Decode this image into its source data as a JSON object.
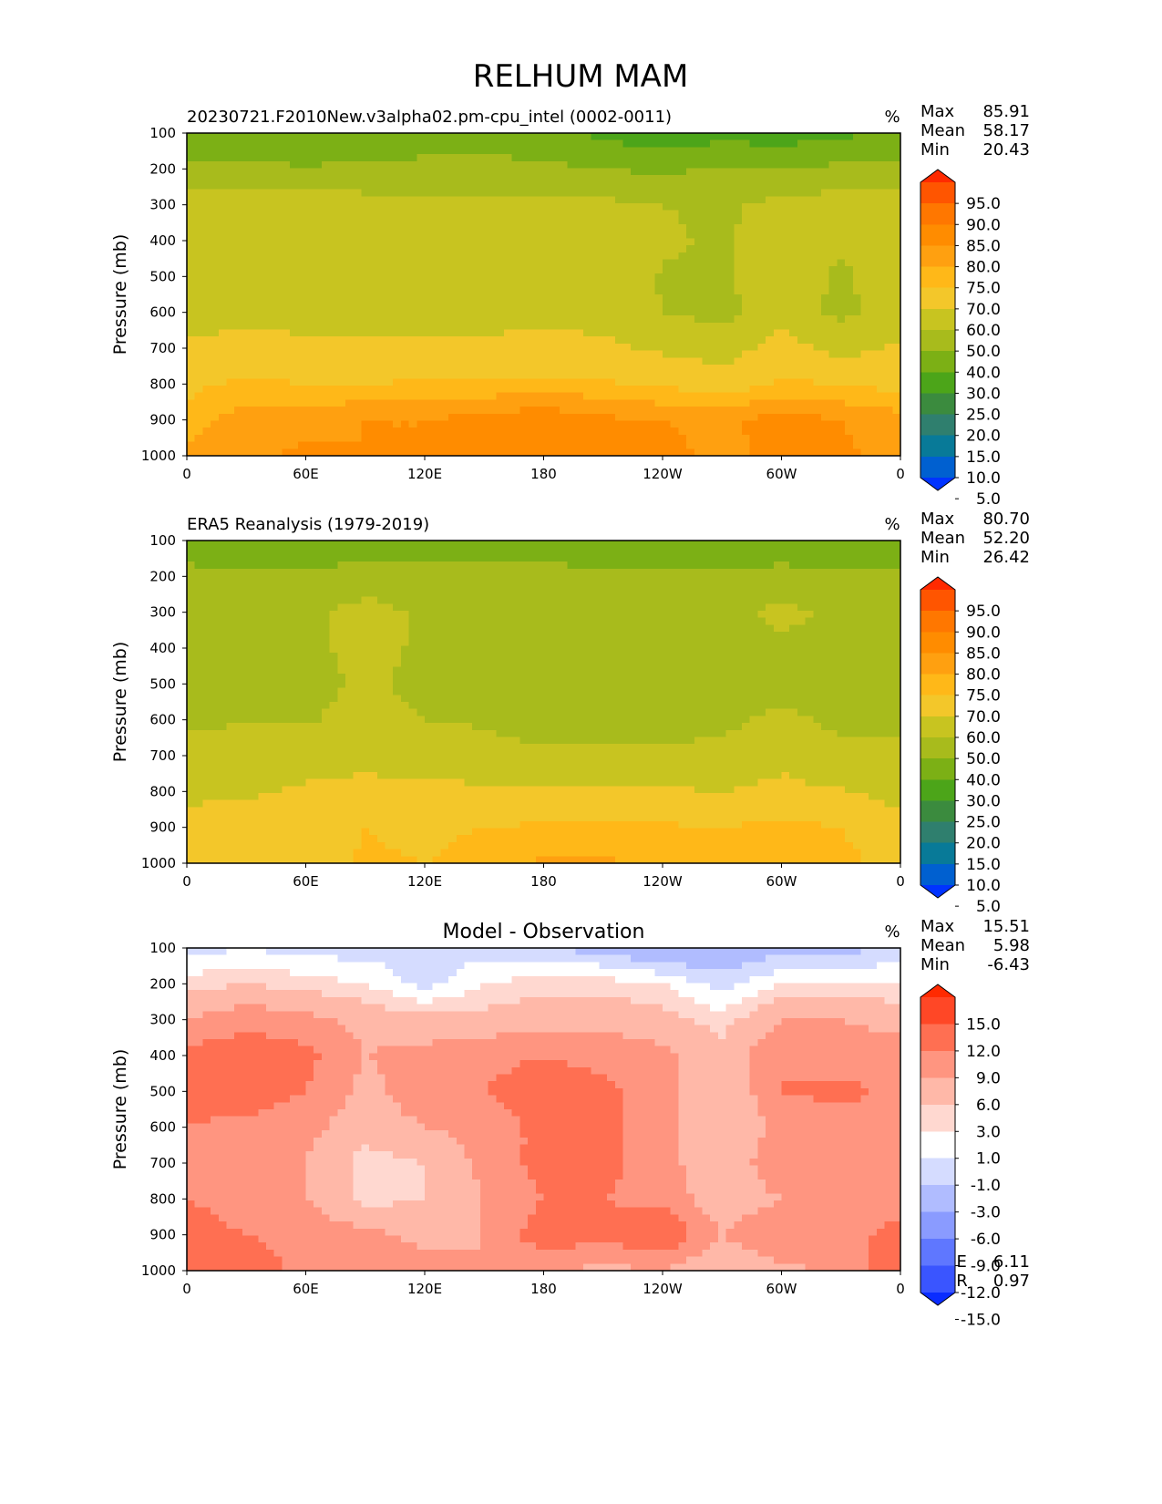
{
  "title": "RELHUM MAM",
  "chart_data": [
    {
      "type": "heatmap",
      "panel": "model",
      "subtitle": "20230721.F2010New.v3alpha02.pm-cpu_intel (0002-0011)",
      "units": "%",
      "ylabel": "Pressure (mb)",
      "yticks": [
        "100",
        "200",
        "300",
        "400",
        "500",
        "600",
        "700",
        "800",
        "900",
        "1000"
      ],
      "xticks": [
        "0",
        "60E",
        "120E",
        "180",
        "120W",
        "60W",
        "0"
      ],
      "ylim": [
        1000,
        100
      ],
      "xlim": [
        0,
        360
      ],
      "stats": [
        {
          "label": "Max",
          "value": "85.91"
        },
        {
          "label": "Mean",
          "value": "58.17"
        },
        {
          "label": "Min",
          "value": "20.43"
        }
      ],
      "colorbar": {
        "labels": [
          "95.0",
          "90.0",
          "85.0",
          "80.0",
          "75.0",
          "70.0",
          "60.0",
          "50.0",
          "40.0",
          "30.0",
          "25.0",
          "20.0",
          "15.0",
          "10.0",
          "5.0"
        ],
        "colors": [
          "#ff2a00",
          "#ff5500",
          "#ff7700",
          "#ff8c00",
          "#ffa010",
          "#ffb818",
          "#f3c72a",
          "#c8c420",
          "#a8bb1c",
          "#7cb015",
          "#4ca519",
          "#3b8b3e",
          "#2f7f6e",
          "#087a98",
          "#0060d0",
          "#0033ff"
        ]
      },
      "field": {
        "x": [
          0,
          30,
          60,
          90,
          120,
          150,
          180,
          210,
          240,
          270,
          300,
          330,
          360
        ],
        "y": [
          100,
          200,
          300,
          400,
          500,
          600,
          700,
          800,
          900,
          1000
        ],
        "z": [
          [
            33,
            32,
            30,
            34,
            36,
            35,
            34,
            27,
            24,
            26,
            25,
            28,
            33
          ],
          [
            43,
            42,
            41,
            42,
            42,
            43,
            42,
            40,
            38,
            41,
            40,
            42,
            43
          ],
          [
            57,
            56,
            55,
            54,
            53,
            53,
            53,
            52,
            50,
            48,
            53,
            55,
            57
          ],
          [
            59,
            60,
            58,
            57,
            57,
            57,
            57,
            56,
            52,
            48,
            57,
            52,
            59
          ],
          [
            58,
            59,
            56,
            57,
            57,
            57,
            57,
            57,
            49,
            48,
            57,
            48,
            57
          ],
          [
            58,
            58,
            57,
            57,
            57,
            57,
            58,
            57,
            50,
            47,
            57,
            47,
            57
          ],
          [
            61,
            62,
            62,
            62,
            62,
            62,
            62,
            62,
            58,
            55,
            64,
            57,
            61
          ],
          [
            68,
            72,
            70,
            70,
            71,
            71,
            72,
            71,
            69,
            66,
            71,
            70,
            68
          ],
          [
            73,
            77,
            78,
            80,
            80,
            82,
            84,
            81,
            80,
            79,
            82,
            80,
            77
          ],
          [
            76,
            79,
            81,
            80,
            80,
            82,
            83,
            81,
            81,
            79,
            81,
            81,
            78
          ]
        ]
      }
    },
    {
      "type": "heatmap",
      "panel": "observation",
      "subtitle": "ERA5 Reanalysis (1979-2019)",
      "units": "%",
      "ylabel": "Pressure (mb)",
      "yticks": [
        "100",
        "200",
        "300",
        "400",
        "500",
        "600",
        "700",
        "800",
        "900",
        "1000"
      ],
      "xticks": [
        "0",
        "60E",
        "120E",
        "180",
        "120W",
        "60W",
        "0"
      ],
      "ylim": [
        1000,
        100
      ],
      "xlim": [
        0,
        360
      ],
      "stats": [
        {
          "label": "Max",
          "value": "80.70"
        },
        {
          "label": "Mean",
          "value": "52.20"
        },
        {
          "label": "Min",
          "value": "26.42"
        }
      ],
      "colorbar": {
        "labels": [
          "95.0",
          "90.0",
          "85.0",
          "80.0",
          "75.0",
          "70.0",
          "60.0",
          "50.0",
          "40.0",
          "30.0",
          "25.0",
          "20.0",
          "15.0",
          "10.0",
          "5.0"
        ],
        "colors": [
          "#ff2a00",
          "#ff5500",
          "#ff7700",
          "#ff8c00",
          "#ffa010",
          "#ffb818",
          "#f3c72a",
          "#c8c420",
          "#a8bb1c",
          "#7cb015",
          "#4ca519",
          "#3b8b3e",
          "#2f7f6e",
          "#087a98",
          "#0060d0",
          "#0033ff"
        ]
      },
      "field": {
        "x": [
          0,
          30,
          60,
          90,
          120,
          150,
          180,
          210,
          240,
          270,
          300,
          330,
          360
        ],
        "y": [
          100,
          200,
          300,
          400,
          500,
          600,
          700,
          800,
          900,
          1000
        ],
        "z": [
          [
            36,
            32,
            34,
            37,
            38,
            37,
            37,
            33,
            31,
            33,
            36,
            34,
            35
          ],
          [
            42,
            42,
            42,
            42,
            42,
            42,
            42,
            42,
            42,
            41,
            42,
            42,
            42
          ],
          [
            47,
            47,
            47,
            55,
            48,
            47,
            47,
            47,
            47,
            46,
            53,
            47,
            47
          ],
          [
            47,
            47,
            47,
            54,
            48,
            47,
            47,
            47,
            47,
            46,
            47,
            47,
            47
          ],
          [
            47,
            47,
            46,
            52,
            47,
            47,
            47,
            47,
            45,
            47,
            47,
            44,
            47
          ],
          [
            48,
            49,
            49,
            54,
            50,
            49,
            47,
            47,
            48,
            48,
            52,
            48,
            48
          ],
          [
            55,
            56,
            57,
            58,
            56,
            53,
            51,
            51,
            51,
            52,
            58,
            52,
            52
          ],
          [
            58,
            59,
            61,
            62,
            62,
            62,
            62,
            62,
            61,
            60,
            62,
            61,
            56
          ],
          [
            63,
            64,
            64,
            70,
            68,
            70,
            71,
            72,
            71,
            70,
            72,
            70,
            64
          ],
          [
            65,
            67,
            67,
            71,
            70,
            73,
            76,
            76,
            73,
            72,
            73,
            72,
            67
          ]
        ]
      }
    },
    {
      "type": "heatmap",
      "panel": "difference",
      "subtitle": "Model - Observation",
      "units": "%",
      "ylabel": "Pressure (mb)",
      "yticks": [
        "100",
        "200",
        "300",
        "400",
        "500",
        "600",
        "700",
        "800",
        "900",
        "1000"
      ],
      "xticks": [
        "0",
        "60E",
        "120E",
        "180",
        "120W",
        "60W",
        "0"
      ],
      "ylim": [
        1000,
        100
      ],
      "xlim": [
        0,
        360
      ],
      "stats": [
        {
          "label": "Max",
          "value": "15.51"
        },
        {
          "label": "Mean",
          "value": "5.98"
        },
        {
          "label": "Min",
          "value": "-6.43"
        }
      ],
      "footer_stats": [
        {
          "label": "RMSE",
          "value": "6.11"
        },
        {
          "label": "CORR",
          "value": "0.97"
        }
      ],
      "colorbar": {
        "labels": [
          "15.0",
          "12.0",
          "9.0",
          "6.0",
          "3.0",
          "1.0",
          "-1.0",
          "-3.0",
          "-6.0",
          "-9.0",
          "-12.0",
          "-15.0"
        ],
        "colors": [
          "#ff2a00",
          "#ff4726",
          "#ff6f52",
          "#ff9580",
          "#ffb8a8",
          "#ffd8d0",
          "#ffffff",
          "#d5dcff",
          "#b0bcff",
          "#8a9bff",
          "#5f77ff",
          "#3a55ff",
          "#0a2cff"
        ]
      },
      "field": {
        "x": [
          0,
          30,
          60,
          90,
          120,
          150,
          180,
          210,
          240,
          270,
          300,
          330,
          360
        ],
        "y": [
          100,
          200,
          300,
          400,
          500,
          600,
          700,
          800,
          900,
          1000
        ],
        "z": [
          [
            -2,
            -1,
            -2,
            -2,
            -2,
            -2,
            -3,
            -4,
            -6,
            -5,
            -4,
            -4,
            -2
          ],
          [
            2,
            3,
            2,
            1,
            -2,
            1,
            2,
            2,
            1,
            -2,
            1,
            1,
            1
          ],
          [
            6,
            8,
            7,
            5,
            4,
            4,
            5,
            5,
            4,
            2,
            6,
            6,
            5
          ],
          [
            10,
            11,
            10,
            6,
            7,
            8,
            9,
            8,
            7,
            4,
            9,
            7,
            8
          ],
          [
            10,
            11,
            9,
            5,
            8,
            9,
            11,
            10,
            7,
            3,
            9,
            10,
            8
          ],
          [
            9,
            8,
            7,
            4,
            6,
            7,
            10,
            10,
            7,
            3,
            7,
            7,
            8
          ],
          [
            8,
            7,
            6,
            2,
            3,
            7,
            10,
            10,
            7,
            4,
            8,
            6,
            8
          ],
          [
            9,
            8,
            6,
            2,
            3,
            6,
            9,
            9,
            8,
            4,
            6,
            7,
            8
          ],
          [
            10,
            9,
            8,
            7,
            5,
            6,
            11,
            10,
            12,
            6,
            9,
            8,
            10
          ],
          [
            12,
            11,
            8,
            9,
            7,
            6,
            7,
            5,
            6,
            3,
            5,
            7,
            12
          ]
        ]
      }
    }
  ]
}
